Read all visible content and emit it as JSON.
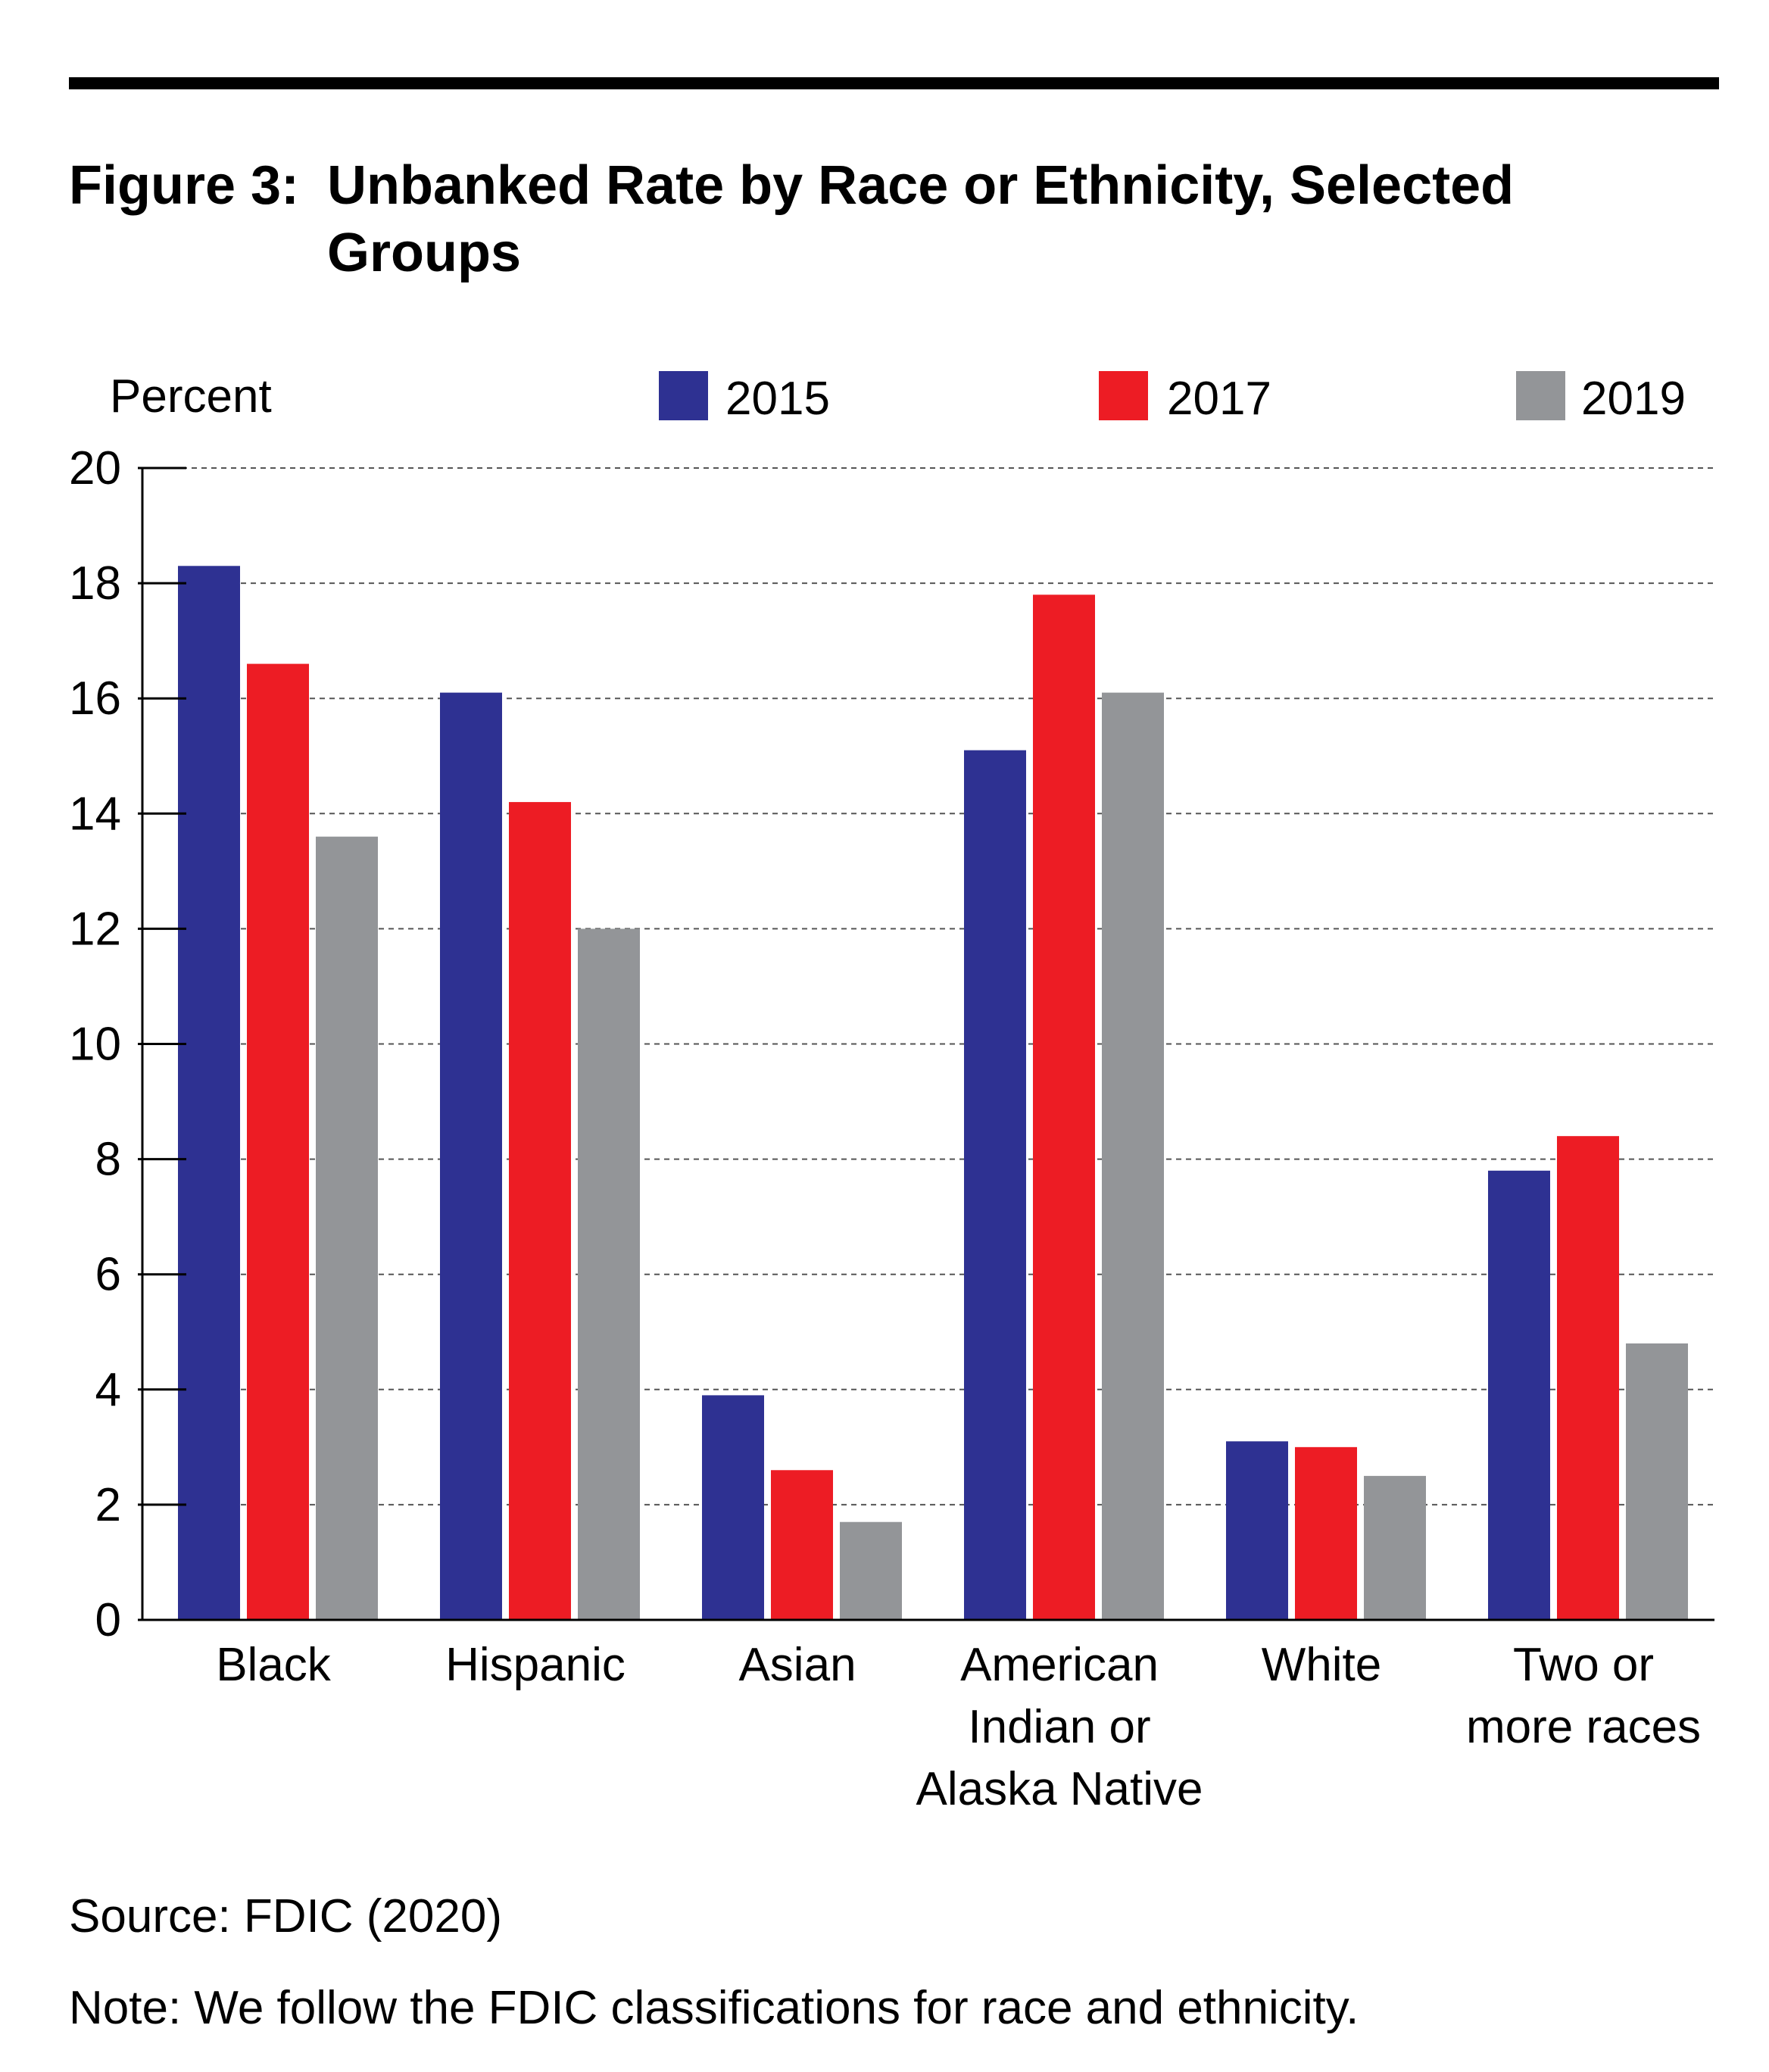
{
  "figure": {
    "title_prefix": "Figure 3:",
    "title_line1": "Unbanked Rate by Race or Ethnicity, Selected",
    "title_line2": "Groups",
    "source": "Source: FDIC (2020)",
    "note": "Note: We follow the FDIC classifications for race and ethnicity."
  },
  "chart_data": {
    "type": "bar",
    "ylabel": "Percent",
    "xlabel": "",
    "ylim": [
      0,
      20
    ],
    "yticks": [
      "0",
      "2",
      "4",
      "6",
      "8",
      "10",
      "12",
      "14",
      "16",
      "18",
      "20"
    ],
    "grid": "dashed horizontal",
    "legend_position": "top",
    "categories": [
      [
        "Black"
      ],
      [
        "Hispanic"
      ],
      [
        "Asian"
      ],
      [
        "American",
        "Indian or",
        "Alaska Native"
      ],
      [
        "White"
      ],
      [
        "Two or",
        "more races"
      ]
    ],
    "series": [
      {
        "name": "2015",
        "color": "#2e3192",
        "values": [
          18.3,
          16.1,
          3.9,
          15.1,
          3.1,
          7.8
        ]
      },
      {
        "name": "2017",
        "color": "#ed1c24",
        "values": [
          16.6,
          14.2,
          2.6,
          17.8,
          3.0,
          8.4
        ]
      },
      {
        "name": "2019",
        "color": "#939598",
        "values": [
          13.6,
          12.0,
          1.7,
          16.1,
          2.5,
          4.8
        ]
      }
    ]
  }
}
